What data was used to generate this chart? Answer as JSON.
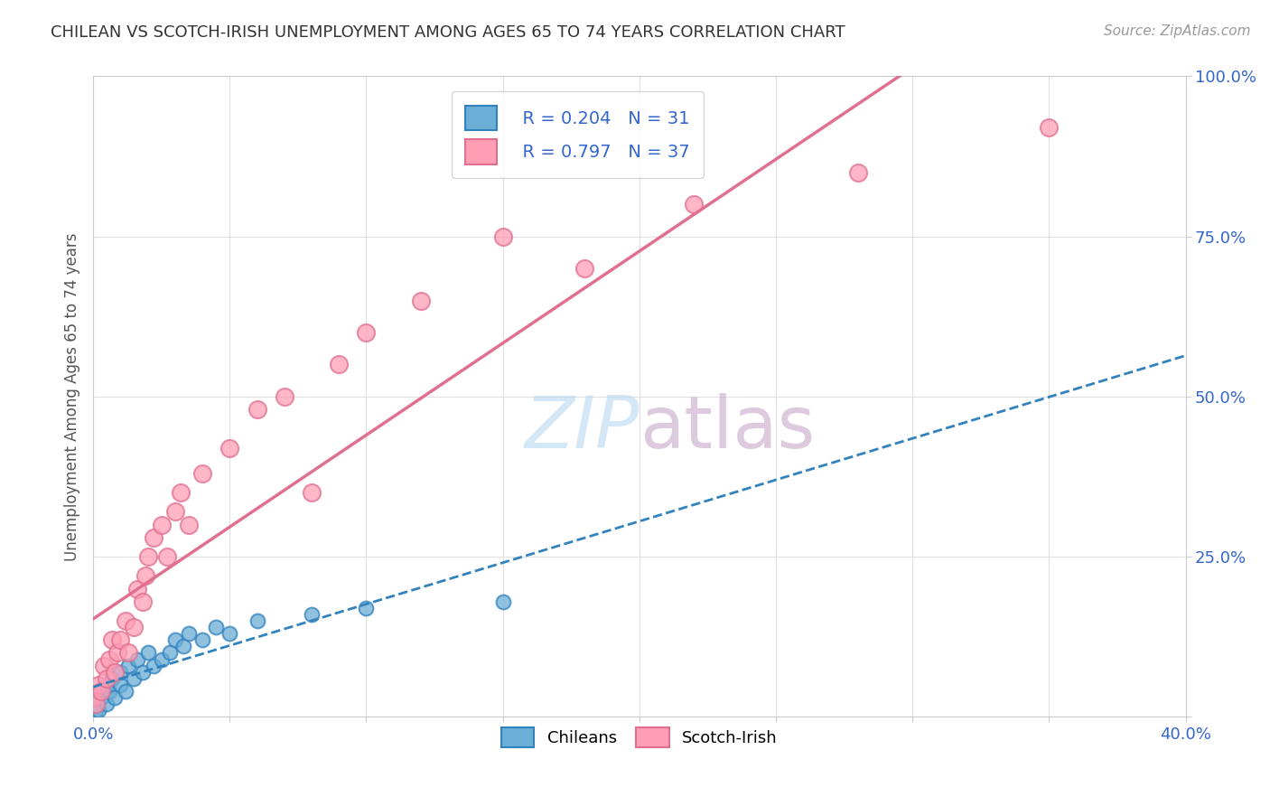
{
  "title": "CHILEAN VS SCOTCH-IRISH UNEMPLOYMENT AMONG AGES 65 TO 74 YEARS CORRELATION CHART",
  "source": "Source: ZipAtlas.com",
  "ylabel": "Unemployment Among Ages 65 to 74 years",
  "xlim": [
    0.0,
    0.4
  ],
  "ylim": [
    0.0,
    1.0
  ],
  "xticks": [
    0.0,
    0.05,
    0.1,
    0.15,
    0.2,
    0.25,
    0.3,
    0.35,
    0.4
  ],
  "yticks": [
    0.0,
    0.25,
    0.5,
    0.75,
    1.0
  ],
  "chilean_color": "#6baed6",
  "scotch_irish_color": "#ff9eb5",
  "chilean_line_color": "#3182bd",
  "scotch_irish_line_color": "#e07090",
  "legend_r_chilean": "R = 0.204",
  "legend_n_chilean": "N = 31",
  "legend_r_scotch": "R = 0.797",
  "legend_n_scotch": "N = 37",
  "watermark_zip": "ZIP",
  "watermark_atlas": "atlas",
  "watermark_color_zip": "#b8d8f0",
  "watermark_color_atlas": "#c8a8c8",
  "background_color": "#ffffff",
  "grid_color": "#e0e0e0",
  "chilean_x": [
    0.0,
    0.001,
    0.002,
    0.003,
    0.003,
    0.005,
    0.005,
    0.006,
    0.007,
    0.008,
    0.01,
    0.01,
    0.012,
    0.013,
    0.015,
    0.016,
    0.018,
    0.02,
    0.022,
    0.025,
    0.028,
    0.03,
    0.033,
    0.035,
    0.04,
    0.045,
    0.05,
    0.06,
    0.08,
    0.1,
    0.15
  ],
  "chilean_y": [
    0.02,
    0.01,
    0.01,
    0.03,
    0.04,
    0.02,
    0.05,
    0.04,
    0.06,
    0.03,
    0.05,
    0.07,
    0.04,
    0.08,
    0.06,
    0.09,
    0.07,
    0.1,
    0.08,
    0.09,
    0.1,
    0.12,
    0.11,
    0.13,
    0.12,
    0.14,
    0.13,
    0.15,
    0.16,
    0.17,
    0.18
  ],
  "scotch_x": [
    0.0,
    0.001,
    0.002,
    0.003,
    0.004,
    0.005,
    0.006,
    0.007,
    0.008,
    0.009,
    0.01,
    0.012,
    0.013,
    0.015,
    0.016,
    0.018,
    0.019,
    0.02,
    0.022,
    0.025,
    0.027,
    0.03,
    0.032,
    0.035,
    0.04,
    0.05,
    0.06,
    0.07,
    0.08,
    0.09,
    0.1,
    0.12,
    0.15,
    0.18,
    0.22,
    0.28,
    0.35
  ],
  "scotch_y": [
    0.03,
    0.02,
    0.05,
    0.04,
    0.08,
    0.06,
    0.09,
    0.12,
    0.07,
    0.1,
    0.12,
    0.15,
    0.1,
    0.14,
    0.2,
    0.18,
    0.22,
    0.25,
    0.28,
    0.3,
    0.25,
    0.32,
    0.35,
    0.3,
    0.38,
    0.42,
    0.48,
    0.5,
    0.35,
    0.55,
    0.6,
    0.65,
    0.75,
    0.7,
    0.8,
    0.85,
    0.92
  ]
}
